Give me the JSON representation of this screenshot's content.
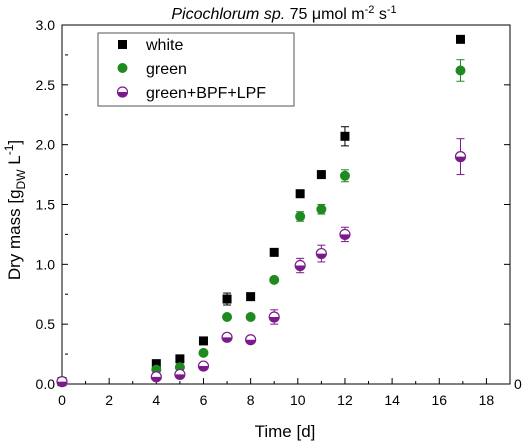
{
  "chart_data": {
    "type": "scatter",
    "title_italic": "Picochlorum sp.",
    "title_main": " 75 μmol m",
    "title_sup1": "-2",
    "title_mid": " s",
    "title_sup2": "-1",
    "xlabel": "Time [d]",
    "ylabel_main": "Dry mass [g",
    "ylabel_sub": "DW",
    "ylabel_mid": " L",
    "ylabel_sup": "-1",
    "ylabel_end": "]",
    "xlim": [
      0,
      19
    ],
    "ylim": [
      0,
      3.0
    ],
    "xticks": [
      0,
      2,
      4,
      6,
      8,
      10,
      12,
      14,
      16,
      18
    ],
    "yticks": [
      "0.0",
      "0.5",
      "1.0",
      "1.5",
      "2.0",
      "2.5",
      "3.0"
    ],
    "right_axis_label": "0",
    "legend_position": "top-left",
    "series": [
      {
        "name": "white",
        "marker": "square",
        "color": "#000000",
        "points": [
          {
            "x": 0,
            "y": 0.02,
            "err": 0
          },
          {
            "x": 4,
            "y": 0.17,
            "err": 0
          },
          {
            "x": 5,
            "y": 0.21,
            "err": 0
          },
          {
            "x": 6,
            "y": 0.36,
            "err": 0
          },
          {
            "x": 7,
            "y": 0.71,
            "err": 0.05
          },
          {
            "x": 8,
            "y": 0.73,
            "err": 0
          },
          {
            "x": 9,
            "y": 1.1,
            "err": 0
          },
          {
            "x": 10.1,
            "y": 1.59,
            "err": 0
          },
          {
            "x": 11,
            "y": 1.75,
            "err": 0
          },
          {
            "x": 12,
            "y": 2.07,
            "err": 0.08
          },
          {
            "x": 16.9,
            "y": 2.88,
            "err": 0
          }
        ]
      },
      {
        "name": "green",
        "marker": "circle",
        "color": "#1f8a1f",
        "points": [
          {
            "x": 0,
            "y": 0.02,
            "err": 0
          },
          {
            "x": 4,
            "y": 0.12,
            "err": 0
          },
          {
            "x": 5,
            "y": 0.14,
            "err": 0
          },
          {
            "x": 6,
            "y": 0.26,
            "err": 0
          },
          {
            "x": 7,
            "y": 0.56,
            "err": 0
          },
          {
            "x": 8,
            "y": 0.56,
            "err": 0
          },
          {
            "x": 9,
            "y": 0.87,
            "err": 0
          },
          {
            "x": 10.1,
            "y": 1.4,
            "err": 0.04
          },
          {
            "x": 11,
            "y": 1.46,
            "err": 0.04
          },
          {
            "x": 12,
            "y": 1.74,
            "err": 0.05
          },
          {
            "x": 16.9,
            "y": 2.62,
            "err": 0.09
          }
        ]
      },
      {
        "name": "green+BPF+LPF",
        "marker": "halfcircle",
        "color": "#7b1a8a",
        "points": [
          {
            "x": 0,
            "y": 0.02,
            "err": 0
          },
          {
            "x": 4,
            "y": 0.06,
            "err": 0
          },
          {
            "x": 5,
            "y": 0.08,
            "err": 0
          },
          {
            "x": 6,
            "y": 0.15,
            "err": 0
          },
          {
            "x": 7,
            "y": 0.39,
            "err": 0
          },
          {
            "x": 8,
            "y": 0.37,
            "err": 0
          },
          {
            "x": 9,
            "y": 0.56,
            "err": 0.06
          },
          {
            "x": 10.1,
            "y": 0.99,
            "err": 0.06
          },
          {
            "x": 11,
            "y": 1.09,
            "err": 0.07
          },
          {
            "x": 12,
            "y": 1.25,
            "err": 0.06
          },
          {
            "x": 16.9,
            "y": 1.9,
            "err": 0.15
          }
        ]
      }
    ]
  }
}
